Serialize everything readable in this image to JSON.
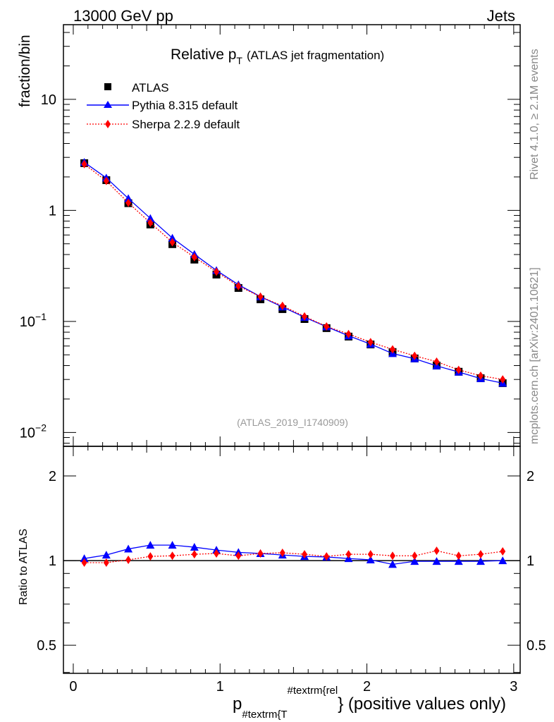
{
  "header": {
    "left": "13000 GeV pp",
    "right": "Jets"
  },
  "side_text": {
    "top": "Rivet 4.1.0, ≥ 2.1M events",
    "bottom": "mcplots.cern.ch [arXiv:2401.10621]"
  },
  "chart_data": {
    "type": "line",
    "title_main": "Relative p",
    "title_sub": "T",
    "title_rest": "(ATLAS jet fragmentation)",
    "watermark": "(ATLAS_2019_I1740909)",
    "xlabel_p": "p",
    "xlabel_sub": "#textrm{T",
    "xlabel_sup": "#textrm{rel",
    "xlabel_rest": "} (positive values only)",
    "ylabel": "fraction/bin",
    "ratio_ylabel": "Ratio to ATLAS",
    "xlim": [
      -0.067,
      3.044
    ],
    "ylim": [
      0.0075,
      47
    ],
    "yscale": "log",
    "ratio_ylim": [
      0.397,
      2.55
    ],
    "ratio_yscale": "log",
    "x_ticks": [
      0,
      1,
      2,
      3
    ],
    "x_tick_labels": [
      "0",
      "1",
      "2",
      "3"
    ],
    "y_ticks": [
      10,
      1,
      0.1,
      0.01
    ],
    "y_tick_labels": [
      {
        "base": "10",
        "exp": ""
      },
      {
        "base": "1",
        "exp": ""
      },
      {
        "base": "10",
        "exp": "−1"
      },
      {
        "base": "10",
        "exp": "−2"
      }
    ],
    "ratio_ticks": [
      0.5,
      1,
      2
    ],
    "ratio_tick_labels": [
      "0.5",
      "1",
      "2"
    ],
    "legend_position": "top-left",
    "x": [
      0.075,
      0.225,
      0.375,
      0.525,
      0.675,
      0.825,
      0.975,
      1.125,
      1.275,
      1.425,
      1.575,
      1.725,
      1.875,
      2.025,
      2.175,
      2.325,
      2.475,
      2.625,
      2.775,
      2.925
    ],
    "series": [
      {
        "name": "ATLAS",
        "color": "#000000",
        "marker": "square",
        "values": [
          2.66,
          1.87,
          1.16,
          0.746,
          0.496,
          0.36,
          0.264,
          0.2,
          0.158,
          0.129,
          0.105,
          0.087,
          0.073,
          0.062,
          0.053,
          0.0464,
          0.04,
          0.0352,
          0.0308,
          0.0278
        ]
      },
      {
        "name": "Pythia 8.315 default",
        "color": "#0000ff",
        "marker": "triangle",
        "line": "solid",
        "values": [
          2.71,
          1.96,
          1.28,
          0.847,
          0.563,
          0.402,
          0.288,
          0.214,
          0.167,
          0.135,
          0.109,
          0.0896,
          0.0742,
          0.0624,
          0.0514,
          0.0461,
          0.0398,
          0.035,
          0.0306,
          0.0278
        ],
        "ratio": [
          1.017,
          1.047,
          1.1,
          1.135,
          1.135,
          1.116,
          1.09,
          1.07,
          1.06,
          1.047,
          1.035,
          1.03,
          1.017,
          1.006,
          0.97,
          0.994,
          0.994,
          0.994,
          0.994,
          1.0
        ]
      },
      {
        "name": "Sherpa 2.2.9 default",
        "color": "#ff0000",
        "marker": "diamond",
        "line": "dotted",
        "values": [
          2.61,
          1.84,
          1.17,
          0.772,
          0.516,
          0.379,
          0.28,
          0.208,
          0.167,
          0.138,
          0.111,
          0.09,
          0.077,
          0.065,
          0.056,
          0.049,
          0.0434,
          0.0366,
          0.0324,
          0.03
        ],
        "ratio": [
          0.983,
          0.983,
          1.006,
          1.035,
          1.04,
          1.053,
          1.06,
          1.04,
          1.06,
          1.066,
          1.053,
          1.035,
          1.053,
          1.053,
          1.04,
          1.04,
          1.084,
          1.04,
          1.053,
          1.078
        ]
      }
    ]
  }
}
